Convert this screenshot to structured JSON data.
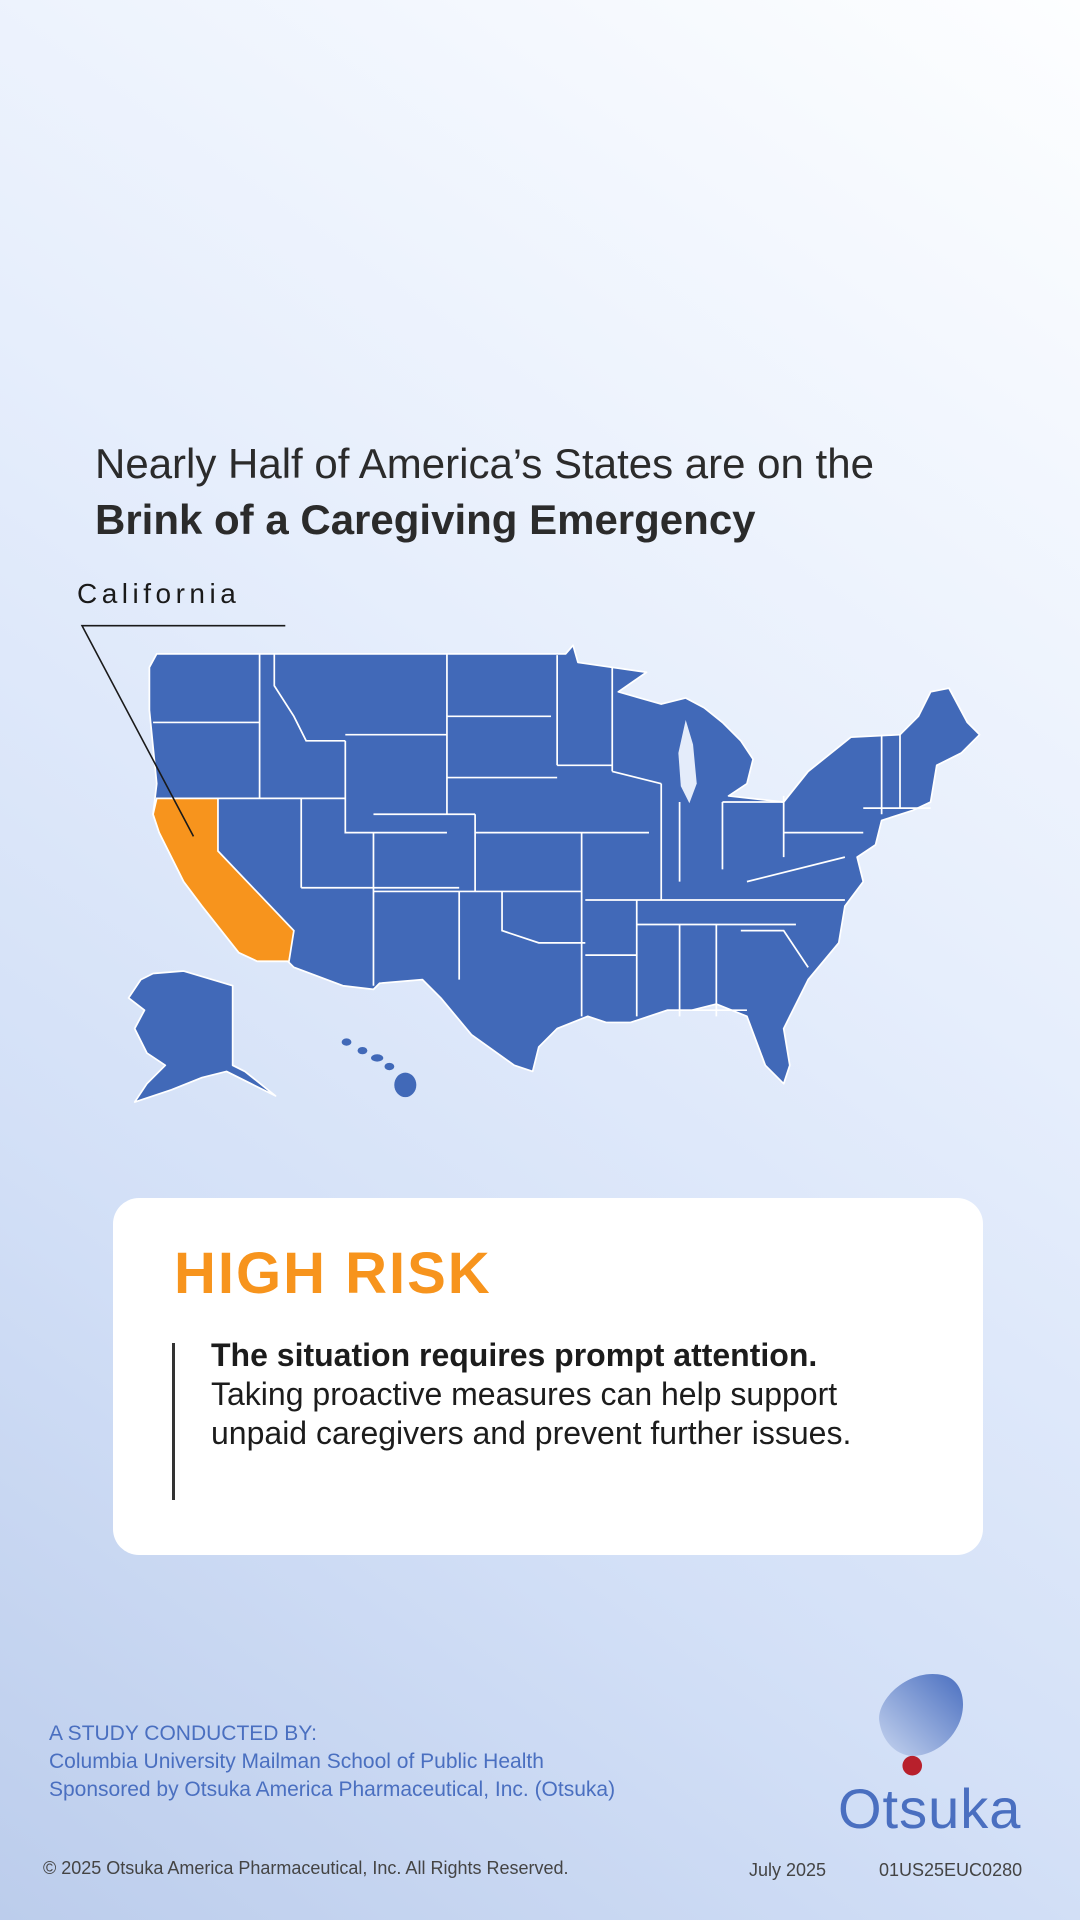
{
  "headline": {
    "line1": "Nearly Half of America’s States are on the",
    "line2": "Brink of a Caregiving Emergency"
  },
  "map": {
    "highlighted_state": "California",
    "colors": {
      "states": "#4169b8",
      "highlight": "#f7941d",
      "borders": "#ffffff"
    }
  },
  "risk_card": {
    "level": "HIGH RISK",
    "level_color": "#f7941d",
    "lead": "The situation requires prompt attention.",
    "text": "Taking proactive measures can help support unpaid caregivers and prevent further issues."
  },
  "footer": {
    "study_heading": "A STUDY CONDUCTED BY:",
    "study_org": "Columbia University Mailman School of Public Health",
    "sponsor": "Sponsored by Otsuka America Pharmaceutical, Inc. (Otsuka)",
    "copyright": "© 2025 Otsuka America Pharmaceutical, Inc. All Rights Reserved.",
    "date": "July 2025",
    "code": "01US25EUC0280",
    "logo_text": "Otsuka"
  }
}
